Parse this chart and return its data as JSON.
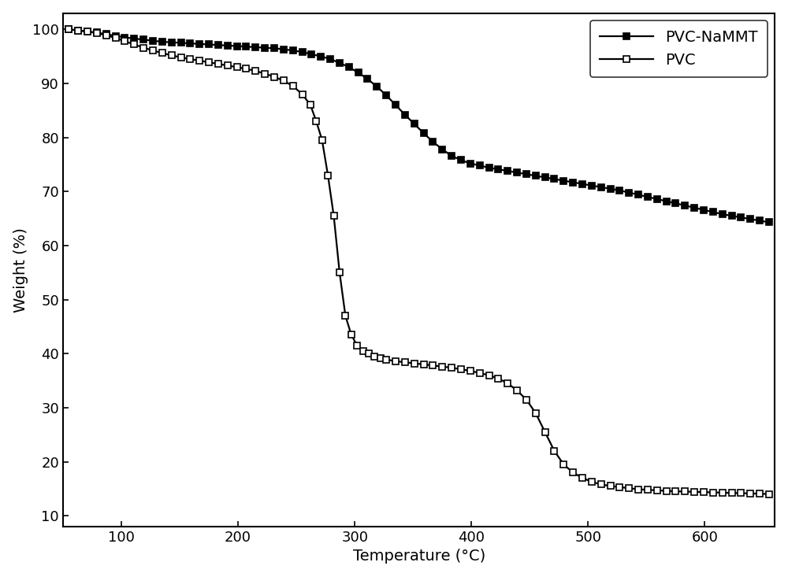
{
  "title": "",
  "xlabel": "Temperature (°C)",
  "ylabel": "Weight (%)",
  "xlim": [
    50,
    660
  ],
  "ylim": [
    8,
    103
  ],
  "xticks": [
    100,
    200,
    300,
    400,
    500,
    600
  ],
  "yticks": [
    10,
    20,
    30,
    40,
    50,
    60,
    70,
    80,
    90,
    100
  ],
  "background_color": "#ffffff",
  "pvc_nammt": {
    "label": "PVC-NaMMT",
    "color": "#000000",
    "marker": "s",
    "markersize": 5.5,
    "linewidth": 1.6,
    "markerfacecolor": "#000000",
    "x": [
      55,
      63,
      71,
      79,
      87,
      95,
      103,
      111,
      119,
      127,
      135,
      143,
      151,
      159,
      167,
      175,
      183,
      191,
      199,
      207,
      215,
      223,
      231,
      239,
      247,
      255,
      263,
      271,
      279,
      287,
      295,
      303,
      311,
      319,
      327,
      335,
      343,
      351,
      359,
      367,
      375,
      383,
      391,
      399,
      407,
      415,
      423,
      431,
      439,
      447,
      455,
      463,
      471,
      479,
      487,
      495,
      503,
      511,
      519,
      527,
      535,
      543,
      551,
      559,
      567,
      575,
      583,
      591,
      599,
      607,
      615,
      623,
      631,
      639,
      647,
      655
    ],
    "y": [
      100.0,
      99.8,
      99.6,
      99.4,
      99.1,
      98.8,
      98.5,
      98.3,
      98.1,
      97.9,
      97.7,
      97.6,
      97.5,
      97.4,
      97.3,
      97.2,
      97.1,
      97.0,
      96.9,
      96.8,
      96.7,
      96.6,
      96.5,
      96.3,
      96.1,
      95.8,
      95.4,
      95.0,
      94.5,
      93.8,
      93.0,
      92.0,
      90.8,
      89.4,
      87.8,
      86.0,
      84.2,
      82.5,
      80.8,
      79.2,
      77.8,
      76.6,
      75.8,
      75.2,
      74.8,
      74.4,
      74.1,
      73.8,
      73.5,
      73.2,
      72.9,
      72.6,
      72.3,
      72.0,
      71.7,
      71.4,
      71.1,
      70.8,
      70.5,
      70.2,
      69.8,
      69.4,
      69.0,
      68.6,
      68.2,
      67.8,
      67.4,
      67.0,
      66.6,
      66.2,
      65.8,
      65.5,
      65.2,
      64.9,
      64.6,
      64.3
    ]
  },
  "pvc": {
    "label": "PVC",
    "color": "#000000",
    "marker": "s",
    "markersize": 5.5,
    "linewidth": 1.6,
    "markerfacecolor": "#ffffff",
    "x": [
      55,
      63,
      71,
      79,
      87,
      95,
      103,
      111,
      119,
      127,
      135,
      143,
      151,
      159,
      167,
      175,
      183,
      191,
      199,
      207,
      215,
      223,
      231,
      239,
      247,
      255,
      262,
      267,
      272,
      277,
      282,
      287,
      292,
      297,
      302,
      307,
      312,
      317,
      322,
      327,
      335,
      343,
      351,
      359,
      367,
      375,
      383,
      391,
      399,
      407,
      415,
      423,
      431,
      439,
      447,
      455,
      463,
      471,
      479,
      487,
      495,
      503,
      511,
      519,
      527,
      535,
      543,
      551,
      559,
      567,
      575,
      583,
      591,
      599,
      607,
      615,
      623,
      631,
      639,
      647,
      655
    ],
    "y": [
      100.0,
      99.8,
      99.6,
      99.3,
      98.9,
      98.4,
      97.8,
      97.2,
      96.6,
      96.1,
      95.6,
      95.2,
      94.8,
      94.5,
      94.2,
      93.9,
      93.6,
      93.3,
      93.0,
      92.7,
      92.3,
      91.8,
      91.2,
      90.5,
      89.5,
      88.0,
      86.0,
      83.0,
      79.5,
      73.0,
      65.5,
      55.0,
      47.0,
      43.5,
      41.5,
      40.5,
      40.0,
      39.5,
      39.2,
      38.9,
      38.6,
      38.4,
      38.2,
      38.0,
      37.8,
      37.6,
      37.4,
      37.1,
      36.8,
      36.4,
      36.0,
      35.4,
      34.5,
      33.2,
      31.5,
      29.0,
      25.5,
      22.0,
      19.5,
      18.0,
      17.0,
      16.3,
      15.8,
      15.5,
      15.3,
      15.1,
      14.9,
      14.8,
      14.7,
      14.6,
      14.5,
      14.5,
      14.4,
      14.4,
      14.3,
      14.3,
      14.2,
      14.2,
      14.1,
      14.1,
      14.0
    ]
  },
  "legend_loc": "upper right",
  "font_size": 14,
  "tick_font_size": 13,
  "marker_every_nammt": 2,
  "marker_every_pvc": 2
}
